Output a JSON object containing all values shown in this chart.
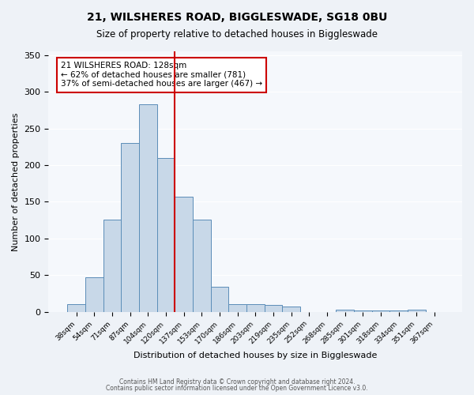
{
  "title": "21, WILSHERES ROAD, BIGGLESWADE, SG18 0BU",
  "subtitle": "Size of property relative to detached houses in Biggleswade",
  "xlabel": "Distribution of detached houses by size in Biggleswade",
  "ylabel": "Number of detached properties",
  "bin_labels": [
    "38sqm",
    "54sqm",
    "71sqm",
    "87sqm",
    "104sqm",
    "120sqm",
    "137sqm",
    "153sqm",
    "170sqm",
    "186sqm",
    "203sqm",
    "219sqm",
    "235sqm",
    "252sqm",
    "268sqm",
    "285sqm",
    "301sqm",
    "318sqm",
    "334sqm",
    "351sqm",
    "367sqm"
  ],
  "bar_heights": [
    11,
    47,
    126,
    230,
    283,
    210,
    157,
    126,
    34,
    11,
    11,
    10,
    7,
    0,
    0,
    3,
    2,
    2,
    2,
    3,
    0
  ],
  "bar_color": "#c8d8e8",
  "bar_edge_color": "#5b8db8",
  "property_line_label": "21 WILSHERES ROAD: 128sqm",
  "annotation_line1": "← 62% of detached houses are smaller (781)",
  "annotation_line2": "37% of semi-detached houses are larger (467) →",
  "annotation_box_color": "#ffffff",
  "annotation_box_edge": "#cc0000",
  "vline_color": "#cc0000",
  "vline_x": 5.5,
  "ylim": [
    0,
    355
  ],
  "yticks": [
    0,
    50,
    100,
    150,
    200,
    250,
    300,
    350
  ],
  "footer1": "Contains HM Land Registry data © Crown copyright and database right 2024.",
  "footer2": "Contains public sector information licensed under the Open Government Licence v3.0.",
  "bg_color": "#eef2f7",
  "plot_bg_color": "#f5f8fc"
}
